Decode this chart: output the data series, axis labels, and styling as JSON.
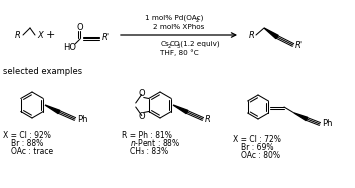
{
  "figsize": [
    3.55,
    1.88
  ],
  "dpi": 100,
  "bg_color": "#ffffff",
  "cond1": "1 mol% Pd(OAc)",
  "cond1_sub": "2",
  "cond2": "2 mol% XPhos",
  "cond3a": "Cs",
  "cond3a_sub": "2",
  "cond3b": "CO",
  "cond3b_sub": "3",
  "cond3c": " (1.2 equiv)",
  "cond4": "THF, 80 °C",
  "sel_ex": "selected examples",
  "ex1": [
    "X = Cl : 92%",
    "Br : 88%",
    "OAc : trace"
  ],
  "ex2": [
    "R = Ph : 81%",
    "n-Pent : 88%",
    "CH₃ : 83%"
  ],
  "ex3": [
    "X = Cl : 72%",
    "Br : 69%",
    "OAc : 80%"
  ],
  "fs": 6.0,
  "fs_s": 5.5
}
